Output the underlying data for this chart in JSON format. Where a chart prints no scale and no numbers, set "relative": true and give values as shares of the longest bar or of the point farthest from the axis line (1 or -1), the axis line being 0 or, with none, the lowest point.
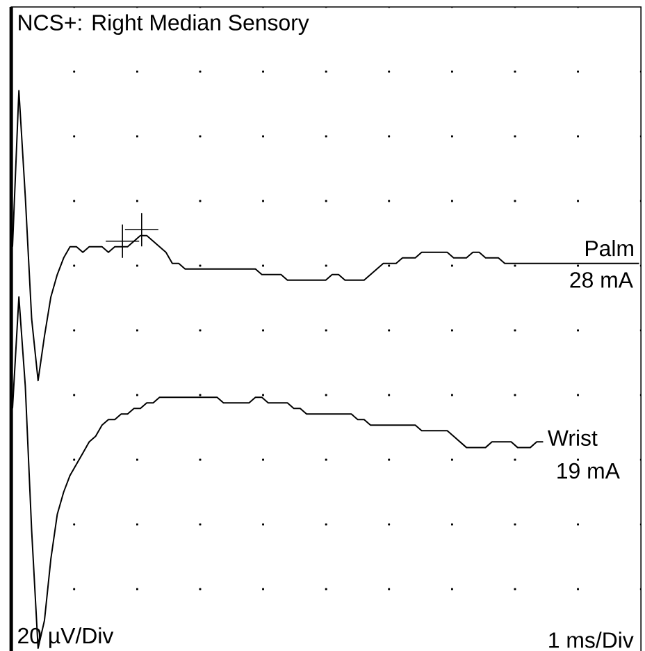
{
  "chart_data": {
    "type": "line",
    "title": "NCS+: Right Median Sensory",
    "annotations": [
      "28 mA",
      "19 mA",
      "20 µV/Div",
      "1 ms/Div"
    ],
    "relative": true,
    "grid": true,
    "categories": [
      null,
      null,
      null,
      null,
      null,
      null,
      null,
      null,
      null,
      null,
      null,
      null,
      null,
      null,
      null,
      null,
      null,
      null,
      null,
      null,
      null,
      null,
      null,
      null,
      null,
      null,
      null,
      null,
      null,
      null,
      null,
      null,
      null,
      null,
      null,
      null,
      null,
      null,
      null,
      null,
      null,
      null,
      null,
      null,
      null,
      null,
      null,
      null,
      null,
      null,
      null,
      null,
      null,
      null,
      null,
      null,
      null,
      null,
      null,
      null,
      null,
      null,
      null,
      null,
      null,
      null,
      null,
      null,
      null,
      null,
      null,
      null,
      null,
      null,
      null,
      null,
      null,
      null,
      null,
      null,
      null,
      null,
      null,
      null,
      null,
      null,
      null,
      null,
      null,
      null,
      null,
      null,
      null,
      null,
      null,
      null,
      null,
      null,
      null
    ],
    "series": [
      {
        "name": "Palm",
        "color": "#000000",
        "values": [
          0.72,
          1.0,
          0.81,
          0.59,
          0.48,
          0.56,
          0.63,
          0.67,
          0.7,
          0.72,
          0.72,
          0.71,
          0.72,
          0.72,
          0.72,
          0.71,
          0.72,
          0.72,
          0.72,
          0.73,
          0.74,
          0.74,
          0.73,
          0.72,
          0.71,
          0.69,
          0.69,
          0.68,
          0.68,
          0.68,
          0.68,
          0.68,
          0.68,
          0.68,
          0.68,
          0.68,
          0.68,
          0.68,
          0.68,
          0.67,
          0.67,
          0.67,
          0.67,
          0.66,
          0.66,
          0.66,
          0.66,
          0.66,
          0.66,
          0.66,
          0.67,
          0.67,
          0.66,
          0.66,
          0.66,
          0.66,
          0.67,
          0.68,
          0.69,
          0.69,
          0.69,
          0.7,
          0.7,
          0.7,
          0.71,
          0.71,
          0.71,
          0.71,
          0.71,
          0.7,
          0.7,
          0.7,
          0.71,
          0.71,
          0.7,
          0.7,
          0.7,
          0.69,
          0.69,
          0.69,
          0.69,
          0.69,
          0.69,
          0.69,
          0.69,
          0.69,
          0.69,
          0.69,
          0.69,
          0.69,
          0.69,
          0.69,
          0.69,
          0.69,
          0.69,
          0.69,
          0.69,
          0.69,
          0.69
        ]
      },
      {
        "name": "Wrist",
        "color": "#000000",
        "values": [
          0.43,
          0.63,
          0.47,
          0.21,
          0.0,
          0.05,
          0.16,
          0.24,
          0.28,
          0.31,
          0.33,
          0.35,
          0.37,
          0.38,
          0.4,
          0.41,
          0.41,
          0.42,
          0.42,
          0.43,
          0.43,
          0.44,
          0.44,
          0.45,
          0.45,
          0.45,
          0.45,
          0.45,
          0.45,
          0.45,
          0.45,
          0.45,
          0.45,
          0.44,
          0.44,
          0.44,
          0.44,
          0.44,
          0.45,
          0.45,
          0.44,
          0.44,
          0.44,
          0.44,
          0.43,
          0.43,
          0.42,
          0.42,
          0.42,
          0.42,
          0.42,
          0.42,
          0.42,
          0.42,
          0.41,
          0.41,
          0.4,
          0.4,
          0.4,
          0.4,
          0.4,
          0.4,
          0.4,
          0.4,
          0.39,
          0.39,
          0.39,
          0.39,
          0.39,
          0.38,
          0.37,
          0.36,
          0.36,
          0.36,
          0.36,
          0.37,
          0.37,
          0.37,
          0.37,
          0.36,
          0.36,
          0.36,
          0.37,
          0.37,
          null,
          null,
          null,
          null,
          null,
          null,
          null,
          null,
          null,
          null,
          null,
          null,
          null,
          null,
          null
        ]
      }
    ]
  }
}
